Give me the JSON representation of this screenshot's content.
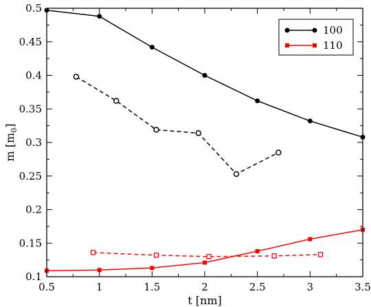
{
  "chart_data": {
    "type": "line",
    "xlabel": "t [nm]",
    "ylabel_main": "m [m",
    "ylabel_sub": "0",
    "ylabel_end": "]",
    "xlim": [
      0.5,
      3.5
    ],
    "ylim": [
      0.1,
      0.5
    ],
    "xticks": [
      0.5,
      1,
      1.5,
      2,
      2.5,
      3,
      3.5
    ],
    "xtick_labels": [
      "0.5",
      "1",
      "1.5",
      "2",
      "2.5",
      "3",
      "3.5"
    ],
    "yticks": [
      0.1,
      0.15,
      0.2,
      0.25,
      0.3,
      0.35,
      0.4,
      0.45,
      0.5
    ],
    "ytick_labels": [
      "0.1",
      "0.15",
      "0.2",
      "0.25",
      "0.3",
      "0.35",
      "0.4",
      "0.45",
      "0.5"
    ],
    "legend_placement": "top-right",
    "series": [
      {
        "name": "100",
        "color": "#000000",
        "dash": "solid",
        "marker": "filled-circle",
        "in_legend": true,
        "x": [
          0.5,
          1.0,
          1.5,
          2.0,
          2.5,
          3.0,
          3.5
        ],
        "y": [
          0.497,
          0.488,
          0.442,
          0.4,
          0.362,
          0.332,
          0.308
        ]
      },
      {
        "name": "",
        "color": "#000000",
        "dash": "dashed",
        "marker": "open-circle",
        "in_legend": false,
        "x": [
          0.78,
          1.16,
          1.54,
          1.94,
          2.3,
          2.7
        ],
        "y": [
          0.398,
          0.362,
          0.319,
          0.314,
          0.253,
          0.285
        ]
      },
      {
        "name": "110",
        "color": "#ff0000",
        "dash": "solid",
        "marker": "filled-square",
        "in_legend": true,
        "x": [
          0.5,
          1.0,
          1.5,
          2.0,
          2.5,
          3.0,
          3.5
        ],
        "y": [
          0.109,
          0.11,
          0.113,
          0.121,
          0.138,
          0.156,
          0.17
        ]
      },
      {
        "name": "",
        "color": "#ff0000",
        "dash": "dashed",
        "marker": "open-square",
        "in_legend": false,
        "x": [
          0.94,
          1.54,
          2.04,
          2.66,
          3.1
        ],
        "y": [
          0.136,
          0.132,
          0.13,
          0.131,
          0.133
        ]
      }
    ]
  }
}
